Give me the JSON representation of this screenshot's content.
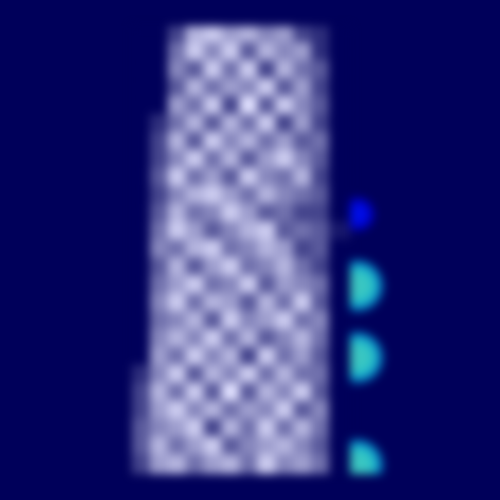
{
  "chart_data": {
    "type": "heatmap",
    "tick_labels": false,
    "grid": false,
    "xlim": [
      -0.5,
      24.5
    ],
    "ylim": [
      24.5,
      -0.5
    ],
    "x": [
      6,
      7,
      8,
      9,
      10,
      11,
      12,
      13,
      14,
      15,
      16,
      17
    ],
    "y": [
      0,
      1,
      2,
      3,
      4,
      5,
      6,
      7,
      8,
      9,
      10,
      11,
      12,
      13,
      14,
      15,
      16,
      17,
      18,
      19,
      20,
      21,
      22,
      23,
      24
    ],
    "cells": [
      [
        0,
        0,
        0.3,
        0.8,
        0.9,
        0.7,
        0.8,
        0.6,
        0.7,
        0.3,
        0.2,
        0
      ],
      [
        0,
        0,
        0.5,
        0.9,
        0.6,
        0.9,
        0.4,
        0.8,
        0.6,
        0.7,
        0.2,
        0
      ],
      [
        0,
        0,
        0.6,
        0.4,
        0.9,
        0.5,
        0.9,
        0.3,
        0.8,
        0.5,
        0.4,
        0
      ],
      [
        0,
        0,
        0.4,
        0.8,
        0.5,
        0.7,
        0.6,
        0.9,
        0.4,
        0.7,
        0.3,
        0
      ],
      [
        0,
        0,
        0.7,
        0.5,
        0.9,
        0.3,
        1.0,
        0.4,
        0.9,
        0.6,
        0.4,
        0
      ],
      [
        0,
        0.2,
        0.5,
        0.8,
        0.4,
        0.8,
        0.5,
        0.9,
        0.3,
        0.7,
        0.3,
        0
      ],
      [
        0,
        0.3,
        0.8,
        0.4,
        0.9,
        0.6,
        0.8,
        0.5,
        0.7,
        0.4,
        0.5,
        0
      ],
      [
        0,
        0.3,
        0.6,
        0.9,
        0.5,
        0.8,
        0.4,
        0.7,
        0.9,
        0.6,
        0.4,
        0
      ],
      [
        0,
        0.4,
        0.9,
        0.5,
        0.7,
        0.4,
        0.9,
        0.6,
        0.5,
        0.8,
        0.3,
        0
      ],
      [
        0,
        0.3,
        0.6,
        0.8,
        0.9,
        0.7,
        0.5,
        0.8,
        0.6,
        0.5,
        0.4,
        0
      ],
      [
        0,
        0.4,
        0.8,
        0.5,
        0.6,
        0.9,
        0.7,
        0.4,
        0.5,
        0.3,
        0.3,
        0
      ],
      [
        0,
        0.5,
        0.9,
        0.7,
        0.4,
        0.6,
        0.8,
        0.9,
        0.4,
        0.5,
        0.4,
        0.1
      ],
      [
        0,
        0.6,
        0.5,
        0.8,
        0.9,
        0.5,
        0.6,
        0.8,
        0.7,
        0.3,
        0.4,
        0
      ],
      [
        0,
        0.4,
        0.8,
        0.4,
        0.7,
        0.9,
        0.5,
        0.6,
        0.8,
        0.5,
        0.3,
        0
      ],
      [
        0,
        0.5,
        0.7,
        0.9,
        0.5,
        0.6,
        0.9,
        0.4,
        0.7,
        0.6,
        0.5,
        0
      ],
      [
        0,
        0.6,
        0.9,
        0.5,
        0.8,
        0.7,
        0.4,
        0.8,
        0.5,
        0.9,
        0.4,
        0
      ],
      [
        0,
        0.5,
        0.6,
        0.8,
        0.4,
        0.9,
        0.6,
        0.7,
        0.9,
        0.5,
        0.6,
        0
      ],
      [
        0,
        0.6,
        0.8,
        0.6,
        0.9,
        0.5,
        0.8,
        0.4,
        0.6,
        0.8,
        0.5,
        0
      ],
      [
        0,
        0.7,
        0.5,
        0.9,
        0.6,
        0.8,
        0.3,
        0.9,
        0.5,
        0.7,
        0.4,
        0
      ],
      [
        0.2,
        0.6,
        0.9,
        0.4,
        0.8,
        0.6,
        0.9,
        0.5,
        0.8,
        0.5,
        0.5,
        0
      ],
      [
        0.3,
        0.8,
        0.5,
        0.9,
        0.4,
        1.0,
        0.4,
        0.8,
        0.6,
        0.9,
        0.4,
        0
      ],
      [
        0.3,
        0.7,
        0.9,
        0.6,
        0.8,
        0.5,
        0.7,
        0.6,
        0.9,
        0.4,
        0.6,
        0
      ],
      [
        0.4,
        0.6,
        0.7,
        0.9,
        0.3,
        0.8,
        0.5,
        0.9,
        0.5,
        0.8,
        0.5,
        0
      ],
      [
        0.4,
        0.8,
        0.5,
        0.7,
        0.9,
        0.4,
        0.6,
        0.7,
        0.8,
        0.6,
        0.4,
        0
      ],
      [
        0.3,
        0.7,
        0.8,
        0.5,
        0.7,
        0.8,
        0.5,
        0.9,
        0.6,
        0.7,
        0.5,
        0
      ]
    ],
    "heat": {
      "x": [
        16,
        18,
        18,
        18,
        16,
        18
      ],
      "y": [
        0,
        10,
        14,
        18,
        19,
        24
      ],
      "values": [
        0.5,
        0.3,
        1.0,
        1.0,
        0.5,
        1.0
      ]
    }
  }
}
